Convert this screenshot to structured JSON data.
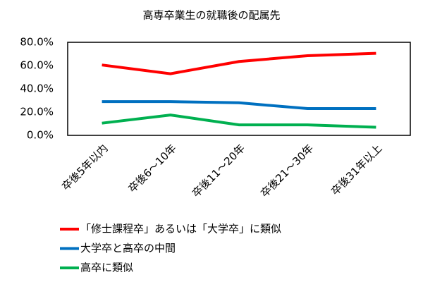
{
  "chart_data": {
    "type": "line",
    "title": "高専卒業生の就職後の配属先",
    "categories": [
      "卒後5年以内",
      "卒後6～10年",
      "卒後11～20年",
      "卒後21～30年",
      "卒後31年以上"
    ],
    "series": [
      {
        "name": "「修士課程卒」あるいは「大学卒」に類似",
        "color": "#ff0000",
        "values": [
          60.5,
          53,
          63.5,
          68.5,
          70.5
        ]
      },
      {
        "name": "大学卒と高卒の中間",
        "color": "#0070c0",
        "values": [
          29,
          29,
          28,
          23,
          23
        ]
      },
      {
        "name": "高卒に類似",
        "color": "#00b050",
        "values": [
          10.5,
          17.5,
          9,
          9,
          7
        ]
      }
    ],
    "ylim": [
      0,
      80
    ],
    "yticks": [
      {
        "value": 0,
        "label": "0.0%"
      },
      {
        "value": 20,
        "label": "20.0%"
      },
      {
        "value": 40,
        "label": "40.0%"
      },
      {
        "value": 60,
        "label": "60.0%"
      },
      {
        "value": 80,
        "label": "80.0%"
      }
    ],
    "grid": false,
    "legend": "bottom"
  }
}
